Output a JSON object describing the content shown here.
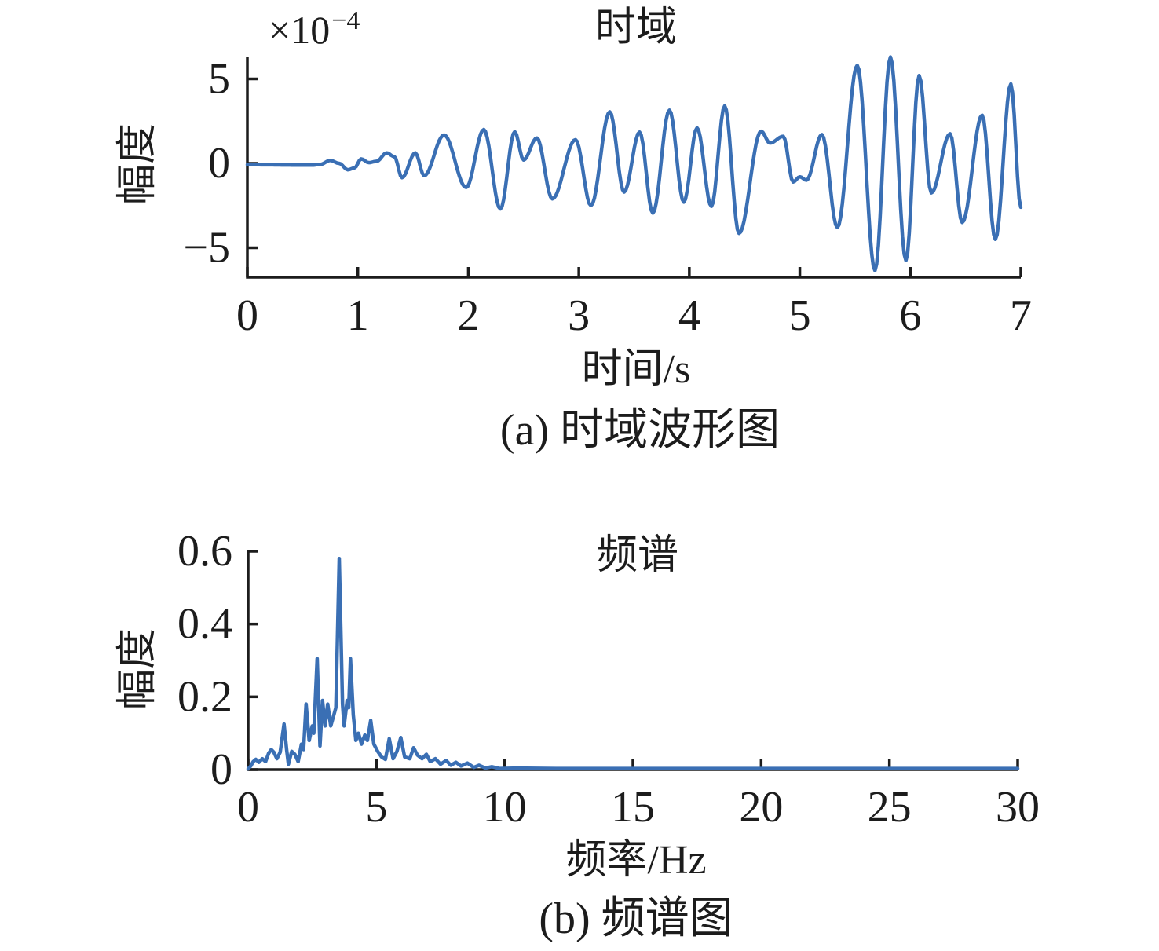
{
  "figure": {
    "background": "#ffffff",
    "line_color": "#3a6fb4",
    "axis_color": "#1c1c1c",
    "text_color": "#1c1c1c"
  },
  "chart_data": [
    {
      "type": "line",
      "title": "时域",
      "xlabel": "时间/s",
      "ylabel": "幅度",
      "caption": "(a) 时域波形图",
      "y_offset_base": "×10",
      "y_offset_exp": "−4",
      "y_unit_scale": "1e-4",
      "xlim": [
        0,
        7
      ],
      "ylim": [
        -6.6,
        6.4
      ],
      "grid": false,
      "legend": "none",
      "x_tick_values": [
        0,
        1,
        2,
        3,
        4,
        5,
        6,
        7
      ],
      "x_tick_labels": [
        "0",
        "1",
        "2",
        "3",
        "4",
        "5",
        "6",
        "7"
      ],
      "y_tick_values": [
        5,
        0,
        -5
      ],
      "y_tick_labels": [
        "5",
        "0",
        "−5"
      ],
      "points": [
        [
          0.0,
          -0.08
        ],
        [
          0.2,
          -0.09
        ],
        [
          0.4,
          -0.1
        ],
        [
          0.6,
          -0.1
        ],
        [
          0.66,
          -0.06
        ],
        [
          0.75,
          0.17
        ],
        [
          0.83,
          0.0
        ],
        [
          0.91,
          -0.38
        ],
        [
          0.97,
          -0.27
        ],
        [
          1.03,
          0.26
        ],
        [
          1.1,
          0.04
        ],
        [
          1.17,
          0.12
        ],
        [
          1.26,
          0.62
        ],
        [
          1.33,
          0.4
        ],
        [
          1.4,
          -0.85
        ],
        [
          1.52,
          0.62
        ],
        [
          1.6,
          -0.73
        ],
        [
          1.78,
          1.68
        ],
        [
          1.98,
          -1.43
        ],
        [
          2.14,
          2.0
        ],
        [
          2.29,
          -2.7
        ],
        [
          2.42,
          1.87
        ],
        [
          2.5,
          0.2
        ],
        [
          2.62,
          1.5
        ],
        [
          2.76,
          -2.1
        ],
        [
          2.97,
          1.4
        ],
        [
          3.11,
          -2.5
        ],
        [
          3.28,
          3.05
        ],
        [
          3.41,
          -1.7
        ],
        [
          3.55,
          1.85
        ],
        [
          3.67,
          -2.95
        ],
        [
          3.82,
          3.15
        ],
        [
          3.95,
          -2.3
        ],
        [
          4.07,
          2.1
        ],
        [
          4.2,
          -2.55
        ],
        [
          4.32,
          3.4
        ],
        [
          4.45,
          -4.15
        ],
        [
          4.65,
          1.9
        ],
        [
          4.73,
          1.2
        ],
        [
          4.85,
          1.6
        ],
        [
          4.94,
          -1.1
        ],
        [
          5.0,
          -0.8
        ],
        [
          5.06,
          -1.0
        ],
        [
          5.2,
          1.7
        ],
        [
          5.34,
          -3.8
        ],
        [
          5.52,
          5.8
        ],
        [
          5.68,
          -6.35
        ],
        [
          5.82,
          6.3
        ],
        [
          5.96,
          -5.75
        ],
        [
          6.08,
          5.2
        ],
        [
          6.19,
          -1.75
        ],
        [
          6.36,
          1.75
        ],
        [
          6.47,
          -3.5
        ],
        [
          6.65,
          2.85
        ],
        [
          6.77,
          -4.5
        ],
        [
          6.91,
          4.7
        ],
        [
          7.0,
          -2.6
        ]
      ]
    },
    {
      "type": "line",
      "title": "频谱",
      "xlabel": "频率/Hz",
      "ylabel": "幅度",
      "caption": "(b) 频谱图",
      "xlim": [
        0,
        30
      ],
      "ylim": [
        0,
        0.62
      ],
      "grid": false,
      "legend": "none",
      "x_tick_values": [
        0,
        5,
        10,
        15,
        20,
        25,
        30
      ],
      "x_tick_labels": [
        "0",
        "5",
        "10",
        "15",
        "20",
        "25",
        "30"
      ],
      "y_tick_values": [
        0.6,
        0.4,
        0.2,
        0
      ],
      "y_tick_labels": [
        "0.6",
        "0.4",
        "0.2",
        "0"
      ],
      "peak": {
        "frequency_hz": 3.55,
        "amplitude": 0.58
      },
      "points": [
        [
          0.0,
          0.002
        ],
        [
          0.1,
          0.01
        ],
        [
          0.2,
          0.022
        ],
        [
          0.3,
          0.028
        ],
        [
          0.42,
          0.02
        ],
        [
          0.55,
          0.03
        ],
        [
          0.68,
          0.022
        ],
        [
          0.8,
          0.045
        ],
        [
          0.9,
          0.055
        ],
        [
          1.0,
          0.048
        ],
        [
          1.12,
          0.03
        ],
        [
          1.25,
          0.048
        ],
        [
          1.4,
          0.125
        ],
        [
          1.5,
          0.055
        ],
        [
          1.57,
          0.015
        ],
        [
          1.7,
          0.05
        ],
        [
          1.82,
          0.042
        ],
        [
          1.95,
          0.022
        ],
        [
          2.08,
          0.07
        ],
        [
          2.16,
          0.055
        ],
        [
          2.26,
          0.18
        ],
        [
          2.38,
          0.08
        ],
        [
          2.5,
          0.12
        ],
        [
          2.56,
          0.1
        ],
        [
          2.69,
          0.305
        ],
        [
          2.8,
          0.065
        ],
        [
          2.9,
          0.19
        ],
        [
          3.0,
          0.12
        ],
        [
          3.1,
          0.18
        ],
        [
          3.22,
          0.12
        ],
        [
          3.32,
          0.145
        ],
        [
          3.42,
          0.17
        ],
        [
          3.55,
          0.58
        ],
        [
          3.68,
          0.18
        ],
        [
          3.74,
          0.12
        ],
        [
          3.86,
          0.19
        ],
        [
          3.92,
          0.17
        ],
        [
          3.99,
          0.305
        ],
        [
          4.1,
          0.15
        ],
        [
          4.2,
          0.08
        ],
        [
          4.3,
          0.1
        ],
        [
          4.42,
          0.07
        ],
        [
          4.55,
          0.095
        ],
        [
          4.65,
          0.08
        ],
        [
          4.78,
          0.135
        ],
        [
          4.9,
          0.07
        ],
        [
          5.05,
          0.05
        ],
        [
          5.2,
          0.035
        ],
        [
          5.35,
          0.028
        ],
        [
          5.5,
          0.085
        ],
        [
          5.65,
          0.03
        ],
        [
          5.8,
          0.05
        ],
        [
          5.95,
          0.088
        ],
        [
          6.1,
          0.035
        ],
        [
          6.3,
          0.03
        ],
        [
          6.45,
          0.06
        ],
        [
          6.6,
          0.04
        ],
        [
          6.78,
          0.03
        ],
        [
          6.95,
          0.042
        ],
        [
          7.1,
          0.022
        ],
        [
          7.3,
          0.03
        ],
        [
          7.5,
          0.015
        ],
        [
          7.72,
          0.025
        ],
        [
          7.9,
          0.012
        ],
        [
          8.1,
          0.02
        ],
        [
          8.3,
          0.01
        ],
        [
          8.55,
          0.018
        ],
        [
          8.8,
          0.006
        ],
        [
          9.0,
          0.012
        ],
        [
          9.25,
          0.004
        ],
        [
          9.5,
          0.008
        ],
        [
          9.8,
          0.003
        ],
        [
          10.5,
          0.004
        ],
        [
          12.0,
          0.003
        ],
        [
          15.0,
          0.003
        ],
        [
          20.0,
          0.003
        ],
        [
          25.0,
          0.003
        ],
        [
          30.0,
          0.003
        ]
      ]
    }
  ]
}
